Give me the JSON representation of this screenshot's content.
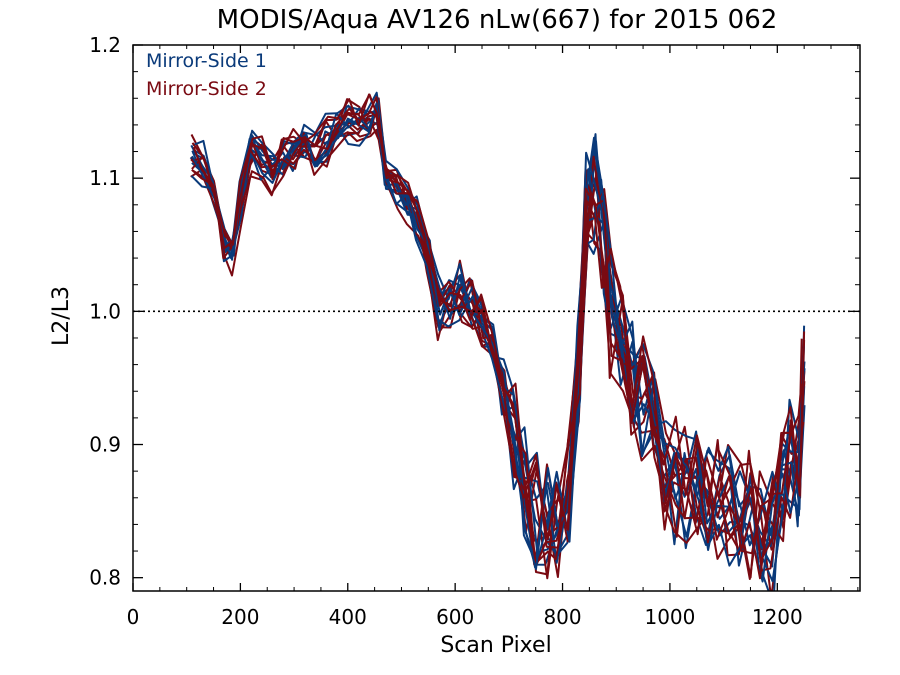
{
  "chart_data": {
    "type": "line",
    "title": "MODIS/Aqua AV126 nLw(667) for 2015 062",
    "xlabel": "Scan Pixel",
    "ylabel": "L2/L3",
    "xlim": [
      0,
      1354
    ],
    "ylim": [
      0.79,
      1.2
    ],
    "x_ticks": [
      0,
      200,
      400,
      600,
      800,
      1000,
      1200
    ],
    "y_ticks": [
      0.8,
      0.9,
      1.0,
      1.1,
      1.2
    ],
    "x_tick_labels": [
      "0",
      "200",
      "400",
      "600",
      "800",
      "1000",
      "1200"
    ],
    "y_tick_labels": [
      "0.8",
      "0.9",
      "1.0",
      "1.1",
      "1.2"
    ],
    "reference_line": {
      "y": 1.0,
      "style": "dotted"
    },
    "legend_position": "top-left",
    "colors": {
      "Mirror-Side 1": "#0a3a7a",
      "Mirror-Side 2": "#7a0a12"
    },
    "x": [
      110,
      130,
      150,
      170,
      185,
      200,
      220,
      240,
      260,
      280,
      300,
      320,
      340,
      360,
      380,
      400,
      420,
      440,
      455,
      470,
      490,
      510,
      530,
      550,
      570,
      590,
      610,
      630,
      650,
      670,
      690,
      710,
      730,
      750,
      770,
      790,
      810,
      830,
      845,
      860,
      875,
      890,
      910,
      930,
      950,
      970,
      990,
      1010,
      1030,
      1050,
      1070,
      1090,
      1110,
      1130,
      1150,
      1170,
      1190,
      1210,
      1225,
      1240,
      1248
    ],
    "series_mean": [
      1.115,
      1.11,
      1.09,
      1.05,
      1.045,
      1.08,
      1.12,
      1.115,
      1.105,
      1.115,
      1.12,
      1.125,
      1.12,
      1.13,
      1.14,
      1.145,
      1.14,
      1.145,
      1.15,
      1.1,
      1.095,
      1.085,
      1.07,
      1.04,
      1.0,
      1.005,
      1.015,
      1.005,
      0.99,
      0.975,
      0.94,
      0.905,
      0.87,
      0.85,
      0.84,
      0.84,
      0.86,
      0.96,
      1.08,
      1.09,
      1.05,
      1.0,
      0.985,
      0.95,
      0.935,
      0.93,
      0.875,
      0.87,
      0.865,
      0.86,
      0.865,
      0.86,
      0.86,
      0.85,
      0.845,
      0.84,
      0.83,
      0.87,
      0.89,
      0.88,
      0.95
    ],
    "series": [
      {
        "name": "Mirror-Side 1",
        "runs": 9
      },
      {
        "name": "Mirror-Side 2",
        "runs": 10
      }
    ]
  }
}
